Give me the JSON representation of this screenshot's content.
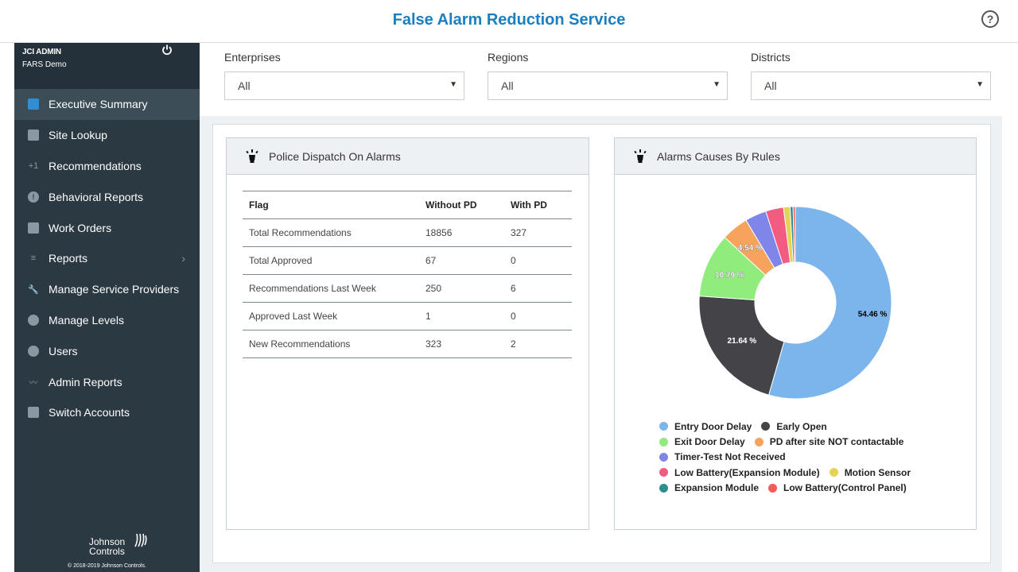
{
  "header": {
    "title": "False Alarm Reduction Service",
    "help_icon": "?"
  },
  "sidebar": {
    "user": {
      "name": "JCI ADMIN",
      "account": "FARS Demo"
    },
    "items": [
      {
        "label": "Executive Summary",
        "icon": "bar-chart-icon",
        "active": true
      },
      {
        "label": "Site Lookup",
        "icon": "storefront-icon"
      },
      {
        "label": "Recommendations",
        "icon": "plus-one-icon",
        "glyph": "+1"
      },
      {
        "label": "Behavioral Reports",
        "icon": "alert-icon",
        "glyph": "!"
      },
      {
        "label": "Work Orders",
        "icon": "clipboard-icon"
      },
      {
        "label": "Reports",
        "icon": "menu-lines-icon",
        "glyph": "≡",
        "chevron": "›"
      },
      {
        "label": "Manage Service Providers",
        "icon": "wrench-icon",
        "glyph": "🔧"
      },
      {
        "label": "Manage Levels",
        "icon": "levels-icon"
      },
      {
        "label": "Users",
        "icon": "user-icon"
      },
      {
        "label": "Admin Reports",
        "icon": "trend-line-icon",
        "glyph": "〰"
      },
      {
        "label": "Switch Accounts",
        "icon": "switch-chart-icon"
      }
    ],
    "brand_line1": "Johnson",
    "brand_line2": "Controls",
    "copyright": "© 2018-2019 Johnson Controls."
  },
  "filters": {
    "enterprises": {
      "label": "Enterprises",
      "value": "All"
    },
    "regions": {
      "label": "Regions",
      "value": "All"
    },
    "districts": {
      "label": "Districts",
      "value": "All"
    }
  },
  "police_card": {
    "title": "Police Dispatch On Alarms",
    "columns": [
      "Flag",
      "Without PD",
      "With PD"
    ],
    "rows": [
      [
        "Total Recommendations",
        "18856",
        "327"
      ],
      [
        "Total Approved",
        "67",
        "0"
      ],
      [
        "Recommendations Last Week",
        "250",
        "6"
      ],
      [
        "Approved Last Week",
        "1",
        "0"
      ],
      [
        "New Recommendations",
        "323",
        "2"
      ]
    ]
  },
  "chart_data": {
    "type": "pie",
    "title": "Alarms Causes By Rules",
    "series": [
      {
        "name": "Entry Door Delay",
        "value": 54.46,
        "color": "#7cb5ec",
        "label": "54.46 %"
      },
      {
        "name": "Early Open",
        "value": 21.64,
        "color": "#434348",
        "label": "21.64 %"
      },
      {
        "name": "Exit Door Delay",
        "value": 10.79,
        "color": "#90ed7d",
        "label": "10.79 %"
      },
      {
        "name": "PD after site NOT contactable",
        "value": 4.54,
        "color": "#f7a35c",
        "label": "4.54 %"
      },
      {
        "name": "Timer-Test Not Received",
        "value": 3.6,
        "color": "#8085e9",
        "label": ""
      },
      {
        "name": "Low Battery(Expansion Module)",
        "value": 3.0,
        "color": "#f15c80",
        "label": ""
      },
      {
        "name": "Motion Sensor",
        "value": 1.1,
        "color": "#e4d354",
        "label": ""
      },
      {
        "name": "Expansion Module",
        "value": 0.5,
        "color": "#2b908f",
        "label": ""
      },
      {
        "name": "Low Battery(Control Panel)",
        "value": 0.37,
        "color": "#f45b5b",
        "label": ""
      }
    ],
    "legend_rows": [
      [
        0,
        1
      ],
      [
        2,
        3
      ],
      [
        4
      ],
      [
        5,
        6
      ],
      [
        7,
        8
      ]
    ],
    "legend_position": "bottom"
  }
}
